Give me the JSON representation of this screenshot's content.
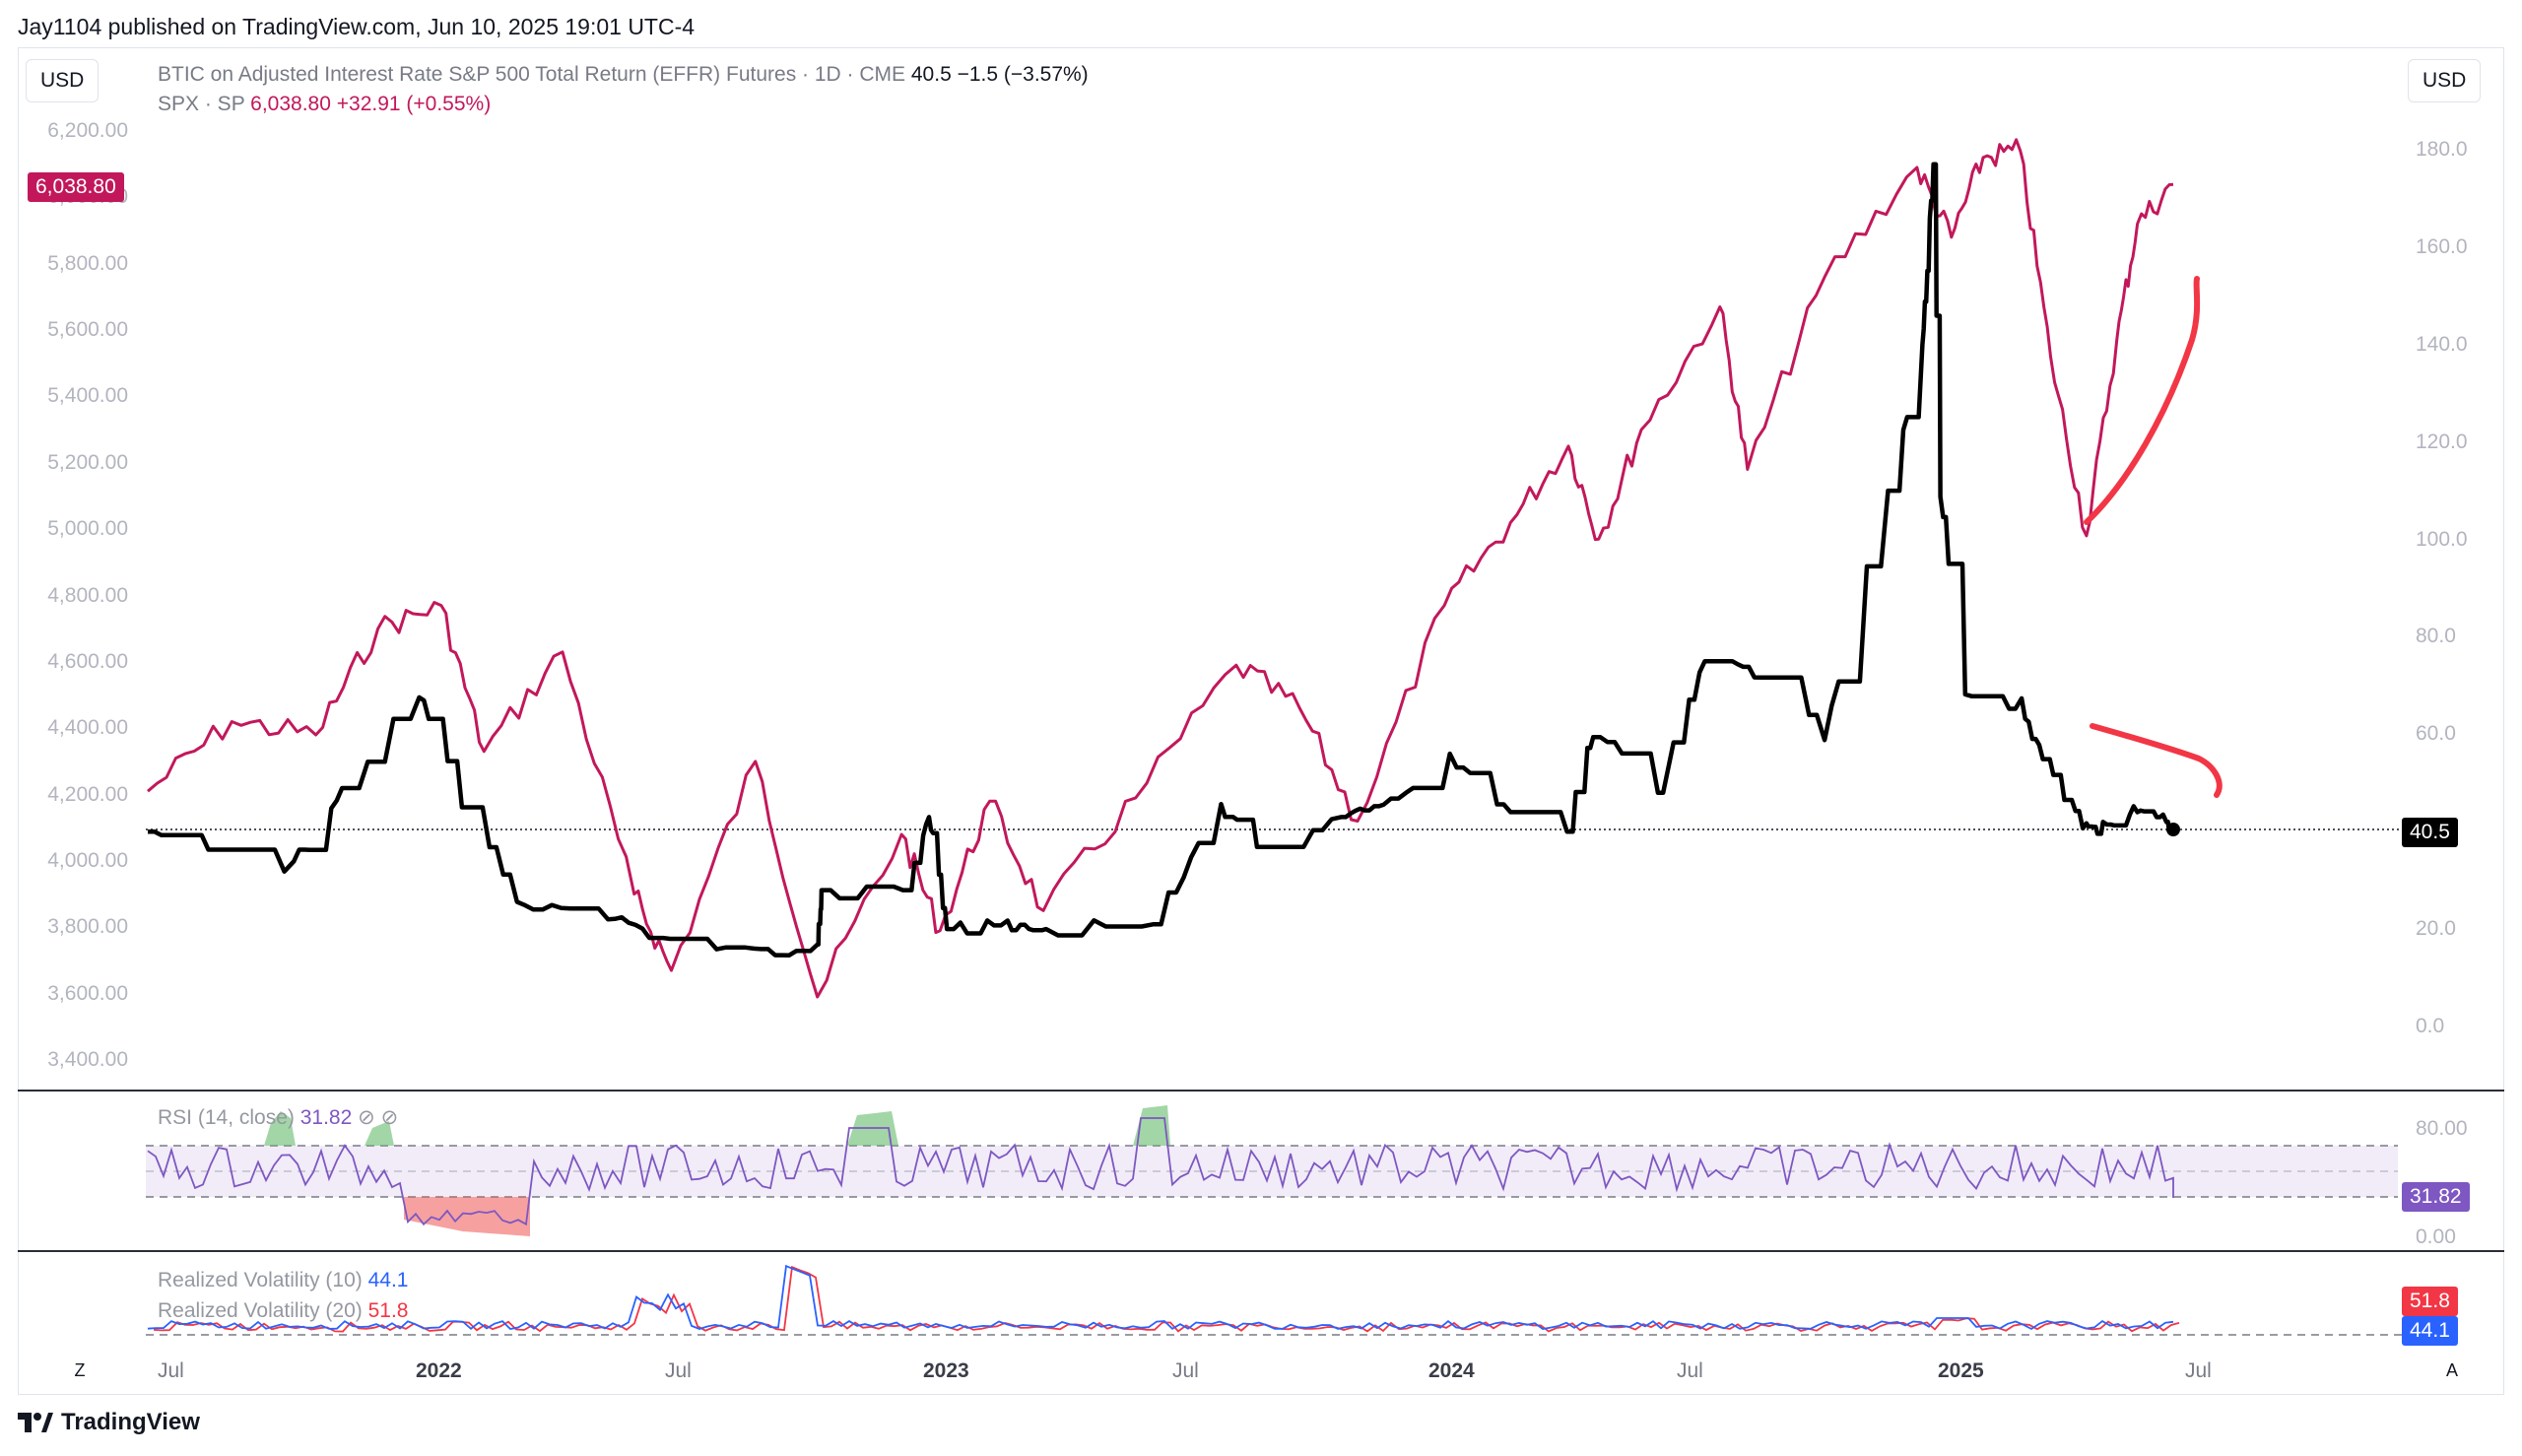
{
  "publisher": "Jay1104 published on TradingView.com, Jun 10, 2025 19:01 UTC-4",
  "currency_left": "USD",
  "currency_right": "USD",
  "legend": {
    "main_title": "BTIC on Adjusted Interest Rate S&P 500 Total Return (EFFR) Futures · 1D · CME",
    "main_value": "40.5",
    "main_change": "−1.5 (−3.57%)",
    "spx_title": "SPX · SP",
    "spx_value": "6,038.80",
    "spx_change": "+32.91 (+0.55%)"
  },
  "price_badges": {
    "spx": "6,038.80",
    "btic": "40.5"
  },
  "rsi": {
    "label": "RSI (14, close)",
    "value": "31.82",
    "badge": "31.82",
    "axis": [
      "80.00",
      "0.00"
    ]
  },
  "realized_vol": {
    "label10": "Realized Volatility (10)",
    "value10": "44.1",
    "label20": "Realized Volatility (20)",
    "value20": "51.8",
    "badge_red": "51.8",
    "badge_blue": "44.1"
  },
  "bottom_buttons": {
    "left": "Z",
    "right": "A"
  },
  "brand": "TradingView",
  "colors": {
    "spx": "#c2185b",
    "btic": "#000000",
    "annotation": "#f23645",
    "rsi": "#7e57c2",
    "rv10": "#2962ff",
    "rv20": "#f23645"
  },
  "chart_data": {
    "type": "line",
    "x_ticks": [
      "Jul",
      "2022",
      "Jul",
      "2023",
      "Jul",
      "2024",
      "Jul",
      "2025",
      "Jul"
    ],
    "left_axis": {
      "ticks": [
        "6,200.00",
        "6,000.00",
        "5,800.00",
        "5,600.00",
        "5,400.00",
        "5,200.00",
        "5,000.00",
        "4,800.00",
        "4,600.00",
        "4,400.00",
        "4,200.00",
        "4,000.00",
        "3,800.00",
        "3,600.00",
        "3,400.00"
      ],
      "ylim": [
        3400,
        6200
      ]
    },
    "right_axis": {
      "ticks": [
        "180.0",
        "160.0",
        "140.0",
        "120.0",
        "100.0",
        "80.0",
        "60.0",
        "40.5",
        "20.0",
        "0.0"
      ],
      "ylim": [
        0,
        180
      ]
    },
    "series": [
      {
        "name": "SPX · SP",
        "axis": "left",
        "x": [
          "2021-06-01",
          "2021-08-01",
          "2021-10-01",
          "2021-11-15",
          "2021-12-31",
          "2022-01-31",
          "2022-03-29",
          "2022-05-20",
          "2022-06-16",
          "2022-08-16",
          "2022-09-30",
          "2022-11-30",
          "2022-12-28",
          "2023-02-02",
          "2023-03-13",
          "2023-05-19",
          "2023-07-31",
          "2023-09-15",
          "2023-10-27",
          "2023-12-29",
          "2024-02-15",
          "2024-03-28",
          "2024-04-19",
          "2024-05-20",
          "2024-07-16",
          "2024-08-05",
          "2024-09-30",
          "2024-12-06",
          "2024-12-31",
          "2025-01-23",
          "2025-02-19",
          "2025-03-13",
          "2025-04-08",
          "2025-04-30",
          "2025-05-15",
          "2025-06-10"
        ],
        "values": [
          4210,
          4420,
          4380,
          4700,
          4770,
          4330,
          4630,
          3900,
          3670,
          4300,
          3590,
          4080,
          3790,
          4180,
          3850,
          4190,
          4590,
          4460,
          4120,
          4770,
          5020,
          5250,
          4970,
          5300,
          5670,
          5180,
          5760,
          6090,
          5880,
          6120,
          6140,
          5520,
          4980,
          5570,
          5920,
          6038.8
        ]
      },
      {
        "name": "BTIC on Adjusted Interest Rate S&P 500 Total Return (EFFR) Futures",
        "axis": "right",
        "x": [
          "2021-06-01",
          "2021-07-15",
          "2021-09-15",
          "2021-10-20",
          "2021-12-15",
          "2022-01-15",
          "2022-03-01",
          "2022-05-01",
          "2022-06-15",
          "2022-08-15",
          "2022-09-30",
          "2022-10-03",
          "2022-12-01",
          "2022-12-20",
          "2023-01-02",
          "2023-02-15",
          "2023-03-15",
          "2023-06-01",
          "2023-07-20",
          "2023-08-15",
          "2023-10-15",
          "2023-11-15",
          "2024-01-02",
          "2024-02-15",
          "2024-03-27",
          "2024-04-15",
          "2024-06-01",
          "2024-07-05",
          "2024-08-10",
          "2024-09-30",
          "2024-11-15",
          "2024-12-10",
          "2024-12-18",
          "2024-12-23",
          "2025-01-10",
          "2025-02-20",
          "2025-03-15",
          "2025-04-08",
          "2025-04-20",
          "2025-05-15",
          "2025-06-05",
          "2025-06-10"
        ],
        "values": [
          40,
          35,
          33,
          48,
          68,
          45,
          25,
          22,
          18,
          16,
          15,
          28,
          28,
          43,
          20,
          20,
          20,
          21,
          45,
          38,
          43,
          44,
          56,
          44,
          40,
          60,
          48,
          75,
          72,
          60,
          110,
          140,
          177,
          110,
          68,
          66,
          50,
          40,
          42,
          44,
          42,
          40.5
        ]
      }
    ],
    "annotations": [
      "red curve rising under SPX (Apr–Jun 2025)",
      "red curve falling above BTIC (Apr–Jun 2025)"
    ],
    "grid": false,
    "legend_position": "top-left"
  }
}
